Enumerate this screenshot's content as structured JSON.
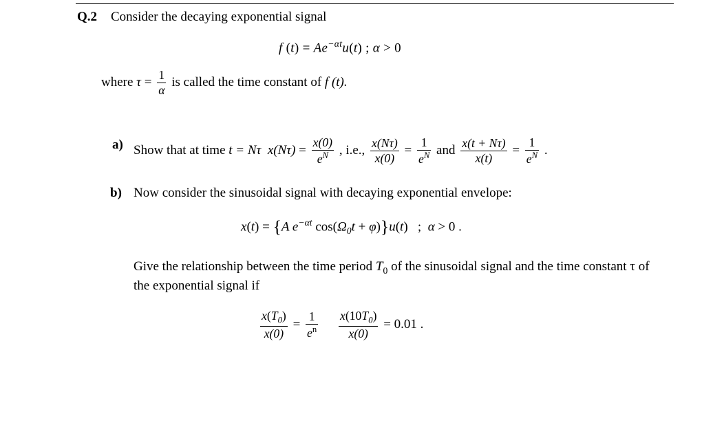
{
  "question": {
    "number": "Q.2",
    "stem": "Consider  the decaying  exponential   signal",
    "eq1_html": "f <span class='rom'>(</span>t<span class='rom'>)</span><span class='rom'> = </span>Ae<span class='sup'>−αt</span>u<span class='rom'>(</span>t<span class='rom'>)</span><span class='rom'> ; </span>α <span class='rom'>&gt; 0</span>",
    "where_pre": "where   ",
    "where_tau": "τ",
    "where_eq": " = ",
    "where_frac_num": "1",
    "where_frac_den": "α",
    "where_post": "  is called  the time constant of ",
    "where_ft": "f (t).",
    "partA_label": "a)",
    "partA_text1": "Show that at time   ",
    "partA_tNt": "t = N",
    "partA_tau": "τ",
    "partA_sp": "   ",
    "partA_xNt": "x(Nτ)",
    "partA_eq": " = ",
    "partA_f1_num": "x(0)",
    "partA_f1_den_html": "e<span class='sup'>N</span>",
    "partA_ie": " , i.e.,  ",
    "partA_f2_num": "x(Nτ)",
    "partA_f2_den": "x(0)",
    "partA_mideq": " = ",
    "partA_f3_num": "1",
    "partA_f3_den_html": "e<span class='sup'>N</span>",
    "partA_and": " and ",
    "partA_f4_num": "x(t + Nτ)",
    "partA_f4_den": "x(t)",
    "partA_eq2": " = ",
    "partA_f5_num": "1",
    "partA_f5_den_html": "e<span class='sup'>N</span>",
    "partA_end": " .",
    "partB_label": "b)",
    "partB_text": "Now consider  the sinusoidal  signal  with decaying  exponential  envelope:",
    "eq2_html": "x<span class='rm'>(</span>t<span class='rm'>)</span> <span class='rm'>=</span> <span class='lbrace'>{</span>A e<span class='sup'>−αt</span> <span class='rm'>cos(</span>Ω<span class='sub'>0</span>t <span class='rm'>+</span> φ<span class='rm'>)</span><span class='rbrace'>}</span>u<span class='rm'>(</span>t<span class='rm'>)</span>&nbsp;&nbsp;&nbsp;<span class='rm'>;</span>&nbsp;&nbsp;α <span class='rm'>&gt; 0 .</span>",
    "partB_para1": "Give  the relationship  between  the time period ",
    "partB_T0": "T",
    "partB_T0_sub": "0",
    "partB_para2": " of the sinusoidal  signal  and the time  constant  τ of the exponential  signal  if",
    "eq3_f1_num_html": "x<span class='rm'>(</span>T<span class='sub'>0</span><span class='rm'>)</span>",
    "eq3_f1_den": "x(0)",
    "eq3_mid1": " = ",
    "eq3_f2_num": "1",
    "eq3_f2_den_html": "e<span class='sup rm'>n</span>",
    "eq3_mid2_html": "&nbsp;&nbsp;&nbsp;",
    "eq3_f3_num_html": "x<span class='rm'>(10</span>T<span class='sub'>0</span><span class='rm'>)</span>",
    "eq3_f3_den": "x(0)",
    "eq3_end": " = 0.01 ."
  }
}
